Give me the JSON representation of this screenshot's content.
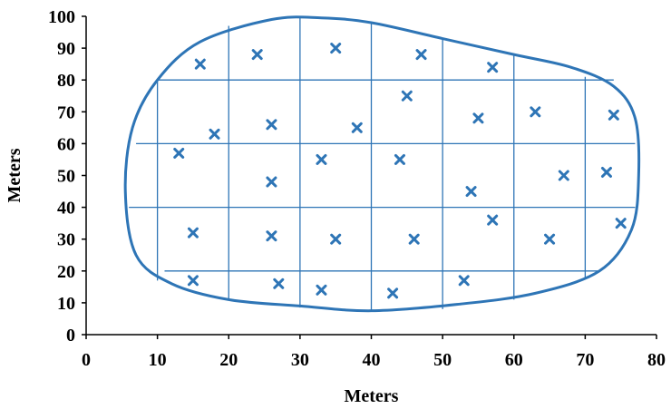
{
  "chart_data": {
    "type": "scatter",
    "title": "",
    "xlabel": "Meters",
    "ylabel": "Meters",
    "xlim": [
      0,
      80
    ],
    "ylim": [
      0,
      100
    ],
    "xticks": [
      "0",
      "10",
      "20",
      "30",
      "40",
      "50",
      "60",
      "70",
      "80"
    ],
    "yticks": [
      "0",
      "10",
      "20",
      "30",
      "40",
      "50",
      "60",
      "70",
      "80",
      "90",
      "100"
    ],
    "marker": "x",
    "color": "#2e75b6",
    "grid": true,
    "points": [
      [
        16,
        85
      ],
      [
        24,
        88
      ],
      [
        35,
        90
      ],
      [
        47,
        88
      ],
      [
        57,
        84
      ],
      [
        45,
        75
      ],
      [
        55,
        68
      ],
      [
        63,
        70
      ],
      [
        74,
        69
      ],
      [
        13,
        57
      ],
      [
        18,
        63
      ],
      [
        26,
        66
      ],
      [
        38,
        65
      ],
      [
        33,
        55
      ],
      [
        44,
        55
      ],
      [
        26,
        48
      ],
      [
        54,
        45
      ],
      [
        67,
        50
      ],
      [
        73,
        51
      ],
      [
        15,
        32
      ],
      [
        26,
        31
      ],
      [
        35,
        30
      ],
      [
        46,
        30
      ],
      [
        57,
        36
      ],
      [
        65,
        30
      ],
      [
        75,
        35
      ],
      [
        15,
        17
      ],
      [
        27,
        16
      ],
      [
        33,
        14
      ],
      [
        43,
        13
      ],
      [
        53,
        17
      ]
    ],
    "boundary": [
      [
        26,
        99
      ],
      [
        33,
        99.5
      ],
      [
        40,
        98
      ],
      [
        50,
        93
      ],
      [
        60,
        88
      ],
      [
        68,
        84
      ],
      [
        74,
        78
      ],
      [
        77,
        68
      ],
      [
        77.5,
        50
      ],
      [
        76.5,
        33
      ],
      [
        72,
        20
      ],
      [
        63,
        13
      ],
      [
        52,
        9.5
      ],
      [
        40,
        7.5
      ],
      [
        30,
        9
      ],
      [
        20,
        11
      ],
      [
        12,
        16
      ],
      [
        7,
        25
      ],
      [
        5.5,
        45
      ],
      [
        6.5,
        65
      ],
      [
        10,
        80
      ],
      [
        16,
        92
      ],
      [
        26,
        99
      ]
    ],
    "grid_lines": {
      "horizontal": [
        {
          "y": 20,
          "x1": 11,
          "x2": 72
        },
        {
          "y": 40,
          "x1": 6,
          "x2": 77
        },
        {
          "y": 60,
          "x1": 7,
          "x2": 77
        },
        {
          "y": 80,
          "x1": 10,
          "x2": 74
        }
      ],
      "vertical": [
        {
          "x": 10,
          "y1": 17,
          "y2": 80
        },
        {
          "x": 20,
          "y1": 11,
          "y2": 97
        },
        {
          "x": 30,
          "y1": 8.5,
          "y2": 99.5
        },
        {
          "x": 40,
          "y1": 7.5,
          "y2": 98
        },
        {
          "x": 50,
          "y1": 8,
          "y2": 93
        },
        {
          "x": 60,
          "y1": 11,
          "y2": 88
        },
        {
          "x": 70,
          "y1": 18,
          "y2": 81
        }
      ]
    }
  }
}
